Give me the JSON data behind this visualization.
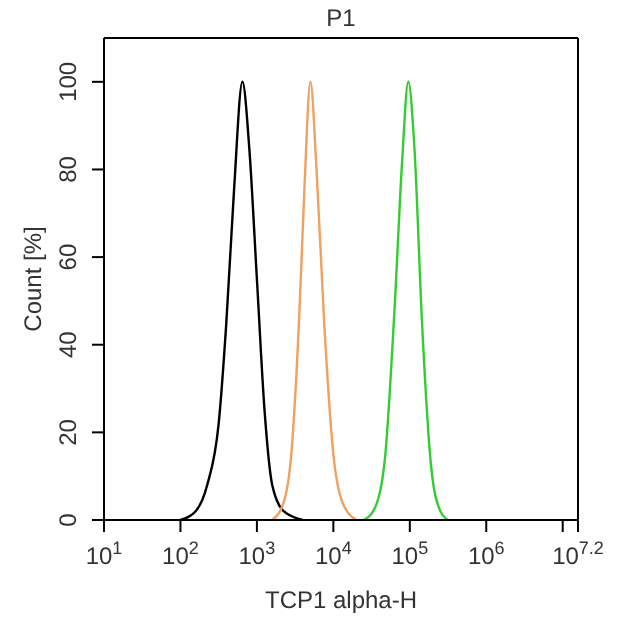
{
  "chart_data": {
    "type": "line",
    "title": "P1",
    "xlabel": "TCP1 alpha-H",
    "ylabel": "Count [%]",
    "log": "x",
    "xlim": [
      10,
      15848932
    ],
    "xticks": [
      {
        "value": 10,
        "label": "10$^{1}$"
      },
      {
        "value": 100,
        "label": "10$^{2}$"
      },
      {
        "value": 1000,
        "label": "10$^{3}$"
      },
      {
        "value": 10000,
        "label": "10$^{4}$"
      },
      {
        "value": 100000,
        "label": "10$^{5}$"
      },
      {
        "value": 1000000,
        "label": "10$^{6}$"
      },
      {
        "value": 10000000,
        "label": null
      },
      {
        "value": 15848932,
        "label": "10$^{7.2}$"
      }
    ],
    "ylim": [
      0,
      110
    ],
    "yticks": [
      0,
      20,
      40,
      60,
      80,
      100
    ],
    "grid": false,
    "legend": false,
    "marker": "none",
    "line_style": "solid",
    "series": [
      {
        "color": "#000000",
        "x": [
          100,
          158,
          224,
          316,
          398,
          501,
          646,
          794,
          1000,
          1259,
          1585,
          2239,
          3981
        ],
        "values": [
          0,
          2,
          8,
          22,
          45,
          75,
          100,
          85,
          55,
          25,
          8,
          2,
          0
        ]
      },
      {
        "color": "#f0a060",
        "x": [
          1585,
          2239,
          2818,
          3548,
          4169,
          5012,
          6026,
          7586,
          10000,
          13183,
          19953
        ],
        "values": [
          0,
          4,
          15,
          45,
          75,
          100,
          80,
          45,
          15,
          4,
          0
        ]
      },
      {
        "color": "#33cc33",
        "x": [
          25119,
          35481,
          47863,
          63096,
          79433,
          95499,
          114815,
          144544,
          190546,
          251189,
          316228
        ],
        "values": [
          0,
          3,
          15,
          48,
          82,
          100,
          85,
          45,
          12,
          2,
          0
        ]
      }
    ]
  }
}
